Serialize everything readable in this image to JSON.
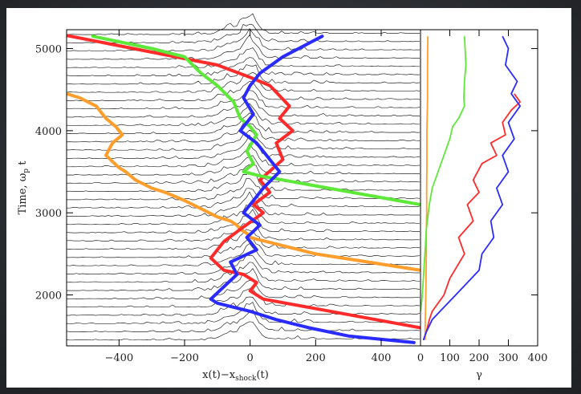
{
  "chart_data": [
    {
      "type": "line",
      "panel": "main",
      "title": "",
      "xlabel": "x(t)−x_shock(t)",
      "xlabel_main": "x(t)−x",
      "xlabel_sub": "shock",
      "xlabel_tail": "(t)",
      "ylabel": "Time, ω_p t",
      "ylabel_main": "Time, ω",
      "ylabel_sub": "p",
      "ylabel_tail": " t",
      "xlim": [
        -560,
        520
      ],
      "ylim": [
        1380,
        5230
      ],
      "xticks": [
        -400,
        -200,
        0,
        200,
        400
      ],
      "xtick_labels": [
        "−400",
        "−200",
        "0",
        "200",
        "400"
      ],
      "yticks": [
        2000,
        3000,
        4000,
        5000
      ],
      "ytick_labels": [
        "2000",
        "3000",
        "4000",
        "5000"
      ],
      "grid": false,
      "background_traces": {
        "count": 38,
        "color": "#000000",
        "t_start": 1450,
        "t_end": 5170
      },
      "series": [
        {
          "color": "#ff9e2c",
          "x": [
            -560,
            -520,
            -470,
            -440,
            -410,
            -390,
            -420,
            -440,
            -400,
            -380,
            -350,
            -300,
            -260,
            -230,
            -200,
            -150,
            -100,
            -60,
            -40,
            -30,
            -10,
            0,
            200,
            520
          ],
          "y": [
            4450,
            4400,
            4300,
            4150,
            4050,
            3950,
            3850,
            3700,
            3550,
            3500,
            3400,
            3300,
            3250,
            3200,
            3150,
            3050,
            2950,
            2900,
            2850,
            2800,
            2750,
            2700,
            2500,
            2300
          ]
        },
        {
          "color": "#ff2b2b",
          "x": [
            -560,
            -100,
            0,
            60,
            120,
            90,
            130,
            80,
            100,
            30,
            60,
            10,
            40,
            -30,
            -80,
            -120,
            -80,
            -20,
            20,
            0,
            40,
            520
          ],
          "y": [
            5160,
            4800,
            4650,
            4550,
            4300,
            4150,
            4000,
            3850,
            3650,
            3400,
            3250,
            3100,
            3000,
            2800,
            2650,
            2450,
            2300,
            2250,
            2150,
            2050,
            1950,
            1600
          ]
        },
        {
          "color": "#5ee83a",
          "x": [
            -480,
            -300,
            -200,
            -150,
            -100,
            -50,
            -30,
            0,
            20,
            -10,
            10,
            -20,
            30,
            520
          ],
          "y": [
            5150,
            5000,
            4900,
            4700,
            4550,
            4350,
            4150,
            4050,
            3950,
            3750,
            3600,
            3500,
            3450,
            3100
          ]
        },
        {
          "color": "#2a2bff",
          "x": [
            220,
            100,
            30,
            0,
            -20,
            10,
            -30,
            20,
            90,
            40,
            10,
            -20,
            30,
            -10,
            20,
            -60,
            -40,
            -80,
            -120,
            -100,
            0,
            80,
            180,
            300,
            500
          ],
          "y": [
            5150,
            4900,
            4700,
            4550,
            4400,
            4200,
            4000,
            3850,
            3500,
            3300,
            3150,
            3000,
            2850,
            2700,
            2550,
            2400,
            2250,
            2100,
            1950,
            1900,
            1800,
            1700,
            1600,
            1500,
            1420
          ]
        }
      ]
    },
    {
      "type": "line",
      "panel": "side",
      "title": "",
      "xlabel": "γ",
      "ylabel": "",
      "xlim": [
        0,
        400
      ],
      "ylim": [
        1380,
        5230
      ],
      "xticks": [
        0,
        100,
        200,
        300,
        400
      ],
      "xtick_labels": [
        "0",
        "100",
        "200",
        "300",
        "400"
      ],
      "grid": false,
      "series": [
        {
          "color": "#ff9e2c",
          "x": [
            25,
            24,
            24,
            22,
            22,
            21,
            21,
            20,
            20,
            19,
            18,
            17,
            16,
            16
          ],
          "y": [
            5150,
            4800,
            4400,
            4000,
            3600,
            3300,
            3000,
            2800,
            2500,
            2200,
            2000,
            1800,
            1600,
            1450
          ]
        },
        {
          "color": "#5ee83a",
          "x": [
            150,
            155,
            150,
            148,
            150,
            130,
            110,
            100,
            80,
            60,
            40,
            30,
            20,
            15,
            10,
            5,
            0
          ],
          "y": [
            5150,
            4800,
            4600,
            4400,
            4300,
            4150,
            4050,
            3900,
            3700,
            3500,
            3300,
            3100,
            2800,
            2500,
            2200,
            1950,
            1800
          ]
        },
        {
          "color": "#ff2b2b",
          "x": [
            320,
            340,
            310,
            280,
            290,
            240,
            260,
            210,
            180,
            200,
            160,
            180,
            130,
            150,
            100,
            80,
            60,
            40,
            30,
            20,
            10
          ],
          "y": [
            4450,
            4350,
            4250,
            4100,
            3950,
            3850,
            3700,
            3600,
            3400,
            3250,
            3100,
            2900,
            2700,
            2500,
            2200,
            2000,
            1900,
            1800,
            1700,
            1550,
            1450
          ]
        },
        {
          "color": "#2a2bff",
          "x": [
            280,
            300,
            290,
            330,
            310,
            340,
            300,
            320,
            280,
            300,
            260,
            280,
            240,
            250,
            210,
            200,
            160,
            120,
            80,
            40,
            20,
            10
          ],
          "y": [
            5150,
            5000,
            4800,
            4600,
            4450,
            4300,
            4100,
            3900,
            3700,
            3500,
            3300,
            3100,
            2900,
            2700,
            2500,
            2300,
            2150,
            2000,
            1850,
            1700,
            1550,
            1450
          ]
        }
      ]
    }
  ]
}
